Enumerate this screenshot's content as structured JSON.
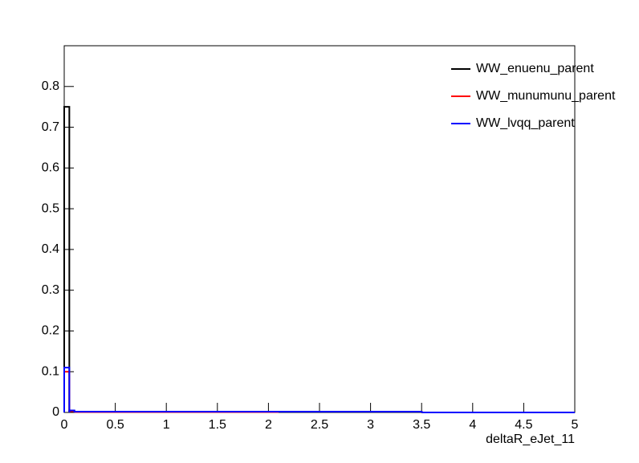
{
  "chart_data": {
    "type": "histogram",
    "x_label": "deltaR_eJet_11",
    "bins": [
      0,
      0.05,
      0.1,
      2.1,
      3.5,
      5
    ],
    "series": [
      {
        "name": "WW_enuenu_parent",
        "color": "#000000",
        "values": [
          0.75,
          0.003,
          0.001,
          0.002,
          0
        ]
      },
      {
        "name": "WW_munumunu_parent",
        "color": "#ff0000",
        "values": [
          0.1,
          0.003,
          0.001,
          0.002,
          0
        ]
      },
      {
        "name": "WW_lvqq_parent",
        "color": "#0000ff",
        "values": [
          0.11,
          0.005,
          0.002,
          0.002,
          0
        ]
      }
    ],
    "xlim": [
      0,
      5
    ],
    "xticks": [
      0,
      0.5,
      1,
      1.5,
      2,
      2.5,
      3,
      3.5,
      4,
      4.5,
      5
    ],
    "ylim": [
      0,
      0.9
    ],
    "yticks": [
      0,
      0.1,
      0.2,
      0.3,
      0.4,
      0.5,
      0.6,
      0.7,
      0.8
    ]
  }
}
